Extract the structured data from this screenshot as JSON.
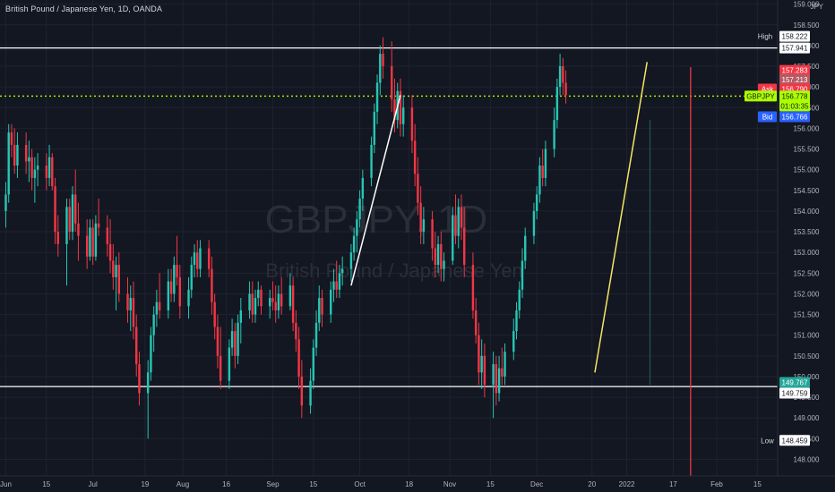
{
  "header": {
    "symbol_line": "British Pound / Japanese Yen, 1D, OANDA",
    "currency": "JPY"
  },
  "watermark": {
    "ticker": "GBPJPY, 1D",
    "name": "British Pound / Japanese Yen"
  },
  "chart_data": {
    "type": "candlestick",
    "instrument": "British Pound / Japanese Yen",
    "timeframe": "1D",
    "source": "OANDA",
    "ylim": [
      147.6,
      159.1
    ],
    "y_ticks": [
      148.0,
      148.5,
      149.0,
      149.5,
      150.0,
      150.5,
      151.0,
      151.5,
      152.0,
      152.5,
      153.0,
      153.5,
      154.0,
      154.5,
      155.0,
      155.5,
      156.0,
      156.5,
      157.0,
      157.5,
      158.0,
      158.5,
      159.0
    ],
    "x_ticks": [
      {
        "label": "Jun",
        "day": 0
      },
      {
        "label": "15",
        "day": 14
      },
      {
        "label": "Jul",
        "day": 30
      },
      {
        "label": "19",
        "day": 48
      },
      {
        "label": "Aug",
        "day": 61
      },
      {
        "label": "16",
        "day": 76
      },
      {
        "label": "Sep",
        "day": 92
      },
      {
        "label": "15",
        "day": 106
      },
      {
        "label": "Oct",
        "day": 122
      },
      {
        "label": "18",
        "day": 139
      },
      {
        "label": "Nov",
        "day": 153
      },
      {
        "label": "15",
        "day": 167
      },
      {
        "label": "Dec",
        "day": 183
      },
      {
        "label": "20",
        "day": 202
      },
      {
        "label": "2022",
        "day": 214
      },
      {
        "label": "17",
        "day": 230
      },
      {
        "label": "Feb",
        "day": 245
      },
      {
        "label": "15",
        "day": 259
      }
    ],
    "price_labels": [
      {
        "tag": "High",
        "value": "158.222",
        "style": "high"
      },
      {
        "tag": "",
        "value": "157.941",
        "style": "line"
      },
      {
        "tag": "",
        "value": "157.283",
        "style": "red"
      },
      {
        "tag": "",
        "value": "157.213",
        "style": "grey"
      },
      {
        "tag": "Ask",
        "value": "156.790",
        "style": "ask"
      },
      {
        "tag": "GBPJPY",
        "value": "156.778",
        "style": "current"
      },
      {
        "tag": "",
        "value": "01:03:35",
        "style": "countdown"
      },
      {
        "tag": "Bid",
        "value": "156.766",
        "style": "bid"
      },
      {
        "tag": "",
        "value": "149.767",
        "style": "teal"
      },
      {
        "tag": "",
        "value": "149.759",
        "style": "line"
      },
      {
        "tag": "Low",
        "value": "148.459",
        "style": "low"
      }
    ],
    "horizontal_lines": [
      157.941,
      149.759
    ],
    "current_price": 156.778,
    "vertical_line_day": 236,
    "trendlines": [
      {
        "from": [
          119,
          152.2
        ],
        "to": [
          136,
          156.8
        ]
      },
      {
        "from": [
          203,
          150.1
        ],
        "to": [
          221,
          157.6
        ]
      }
    ],
    "ohlc_shown": "approximate, read from chart",
    "candles": [
      {
        "d": 0,
        "o": 154.0,
        "h": 154.7,
        "l": 153.6,
        "c": 154.4
      },
      {
        "d": 1,
        "o": 154.4,
        "h": 156.1,
        "l": 154.2,
        "c": 155.9
      },
      {
        "d": 2,
        "o": 155.9,
        "h": 156.1,
        "l": 155.3,
        "c": 155.6
      },
      {
        "d": 3,
        "o": 155.6,
        "h": 156.0,
        "l": 154.9,
        "c": 155.1
      },
      {
        "d": 4,
        "o": 155.1,
        "h": 155.9,
        "l": 154.8,
        "c": 155.6
      },
      {
        "d": 7,
        "o": 155.6,
        "h": 155.9,
        "l": 154.9,
        "c": 155.2
      },
      {
        "d": 8,
        "o": 155.2,
        "h": 155.7,
        "l": 154.7,
        "c": 155.3
      },
      {
        "d": 9,
        "o": 155.3,
        "h": 155.5,
        "l": 154.5,
        "c": 154.8
      },
      {
        "d": 10,
        "o": 154.8,
        "h": 155.3,
        "l": 154.2,
        "c": 155.0
      },
      {
        "d": 11,
        "o": 155.0,
        "h": 155.4,
        "l": 154.6,
        "c": 155.1
      },
      {
        "d": 14,
        "o": 155.1,
        "h": 155.4,
        "l": 154.5,
        "c": 154.8
      },
      {
        "d": 15,
        "o": 154.8,
        "h": 155.6,
        "l": 154.6,
        "c": 155.3
      },
      {
        "d": 16,
        "o": 155.3,
        "h": 155.4,
        "l": 154.5,
        "c": 154.6
      },
      {
        "d": 17,
        "o": 154.6,
        "h": 154.8,
        "l": 153.2,
        "c": 153.5
      },
      {
        "d": 18,
        "o": 153.5,
        "h": 153.9,
        "l": 152.9,
        "c": 153.2
      },
      {
        "d": 21,
        "o": 153.2,
        "h": 154.3,
        "l": 152.2,
        "c": 154.1
      },
      {
        "d": 22,
        "o": 154.1,
        "h": 154.3,
        "l": 153.3,
        "c": 153.5
      },
      {
        "d": 23,
        "o": 153.5,
        "h": 154.6,
        "l": 153.3,
        "c": 154.4
      },
      {
        "d": 24,
        "o": 154.4,
        "h": 155.0,
        "l": 153.5,
        "c": 153.7
      },
      {
        "d": 25,
        "o": 153.7,
        "h": 154.2,
        "l": 152.8,
        "c": 153.4
      },
      {
        "d": 28,
        "o": 153.4,
        "h": 153.8,
        "l": 152.6,
        "c": 152.9
      },
      {
        "d": 29,
        "o": 152.9,
        "h": 153.8,
        "l": 152.8,
        "c": 153.6
      },
      {
        "d": 30,
        "o": 153.6,
        "h": 153.8,
        "l": 152.7,
        "c": 152.9
      },
      {
        "d": 31,
        "o": 152.9,
        "h": 153.9,
        "l": 152.8,
        "c": 153.7
      },
      {
        "d": 32,
        "o": 153.7,
        "h": 154.3,
        "l": 153.4,
        "c": 153.6
      },
      {
        "d": 35,
        "o": 153.6,
        "h": 153.9,
        "l": 152.9,
        "c": 153.2
      },
      {
        "d": 36,
        "o": 153.2,
        "h": 153.8,
        "l": 152.5,
        "c": 152.8
      },
      {
        "d": 37,
        "o": 152.8,
        "h": 153.2,
        "l": 152.1,
        "c": 152.4
      },
      {
        "d": 38,
        "o": 152.4,
        "h": 152.9,
        "l": 151.6,
        "c": 152.7
      },
      {
        "d": 39,
        "o": 152.7,
        "h": 153.0,
        "l": 151.8,
        "c": 152.0
      },
      {
        "d": 42,
        "o": 152.0,
        "h": 152.4,
        "l": 151.3,
        "c": 151.6
      },
      {
        "d": 43,
        "o": 151.6,
        "h": 152.2,
        "l": 151.1,
        "c": 151.9
      },
      {
        "d": 44,
        "o": 151.9,
        "h": 152.3,
        "l": 150.9,
        "c": 151.2
      },
      {
        "d": 45,
        "o": 151.2,
        "h": 151.5,
        "l": 150.0,
        "c": 150.3
      },
      {
        "d": 46,
        "o": 150.3,
        "h": 150.6,
        "l": 149.3,
        "c": 149.6
      },
      {
        "d": 49,
        "o": 149.6,
        "h": 150.4,
        "l": 148.5,
        "c": 150.1
      },
      {
        "d": 50,
        "o": 150.1,
        "h": 151.2,
        "l": 149.9,
        "c": 151.0
      },
      {
        "d": 51,
        "o": 151.0,
        "h": 151.7,
        "l": 150.6,
        "c": 151.5
      },
      {
        "d": 52,
        "o": 151.5,
        "h": 152.1,
        "l": 151.2,
        "c": 151.8
      },
      {
        "d": 53,
        "o": 151.8,
        "h": 152.5,
        "l": 151.4,
        "c": 151.6
      },
      {
        "d": 56,
        "o": 151.6,
        "h": 152.6,
        "l": 151.4,
        "c": 152.3
      },
      {
        "d": 57,
        "o": 152.3,
        "h": 152.6,
        "l": 151.8,
        "c": 152.0
      },
      {
        "d": 58,
        "o": 152.0,
        "h": 152.9,
        "l": 151.8,
        "c": 152.7
      },
      {
        "d": 59,
        "o": 152.7,
        "h": 153.4,
        "l": 152.2,
        "c": 152.4
      },
      {
        "d": 60,
        "o": 152.4,
        "h": 152.7,
        "l": 151.4,
        "c": 151.7
      },
      {
        "d": 63,
        "o": 151.7,
        "h": 152.4,
        "l": 151.4,
        "c": 152.1
      },
      {
        "d": 64,
        "o": 152.1,
        "h": 152.9,
        "l": 151.9,
        "c": 152.7
      },
      {
        "d": 65,
        "o": 152.7,
        "h": 153.2,
        "l": 152.4,
        "c": 153.0
      },
      {
        "d": 66,
        "o": 153.0,
        "h": 153.3,
        "l": 152.4,
        "c": 152.6
      },
      {
        "d": 67,
        "o": 152.6,
        "h": 153.3,
        "l": 152.4,
        "c": 153.1
      },
      {
        "d": 70,
        "o": 153.1,
        "h": 153.3,
        "l": 152.4,
        "c": 152.6
      },
      {
        "d": 71,
        "o": 152.6,
        "h": 152.9,
        "l": 151.5,
        "c": 151.8
      },
      {
        "d": 72,
        "o": 151.8,
        "h": 152.0,
        "l": 150.9,
        "c": 151.2
      },
      {
        "d": 73,
        "o": 151.2,
        "h": 151.5,
        "l": 150.2,
        "c": 150.5
      },
      {
        "d": 74,
        "o": 150.5,
        "h": 151.2,
        "l": 149.7,
        "c": 149.9
      },
      {
        "d": 77,
        "o": 149.9,
        "h": 150.9,
        "l": 149.7,
        "c": 150.7
      },
      {
        "d": 78,
        "o": 150.7,
        "h": 151.4,
        "l": 150.5,
        "c": 151.1
      },
      {
        "d": 79,
        "o": 151.1,
        "h": 151.3,
        "l": 150.2,
        "c": 150.5
      },
      {
        "d": 80,
        "o": 150.5,
        "h": 151.5,
        "l": 150.3,
        "c": 151.3
      },
      {
        "d": 81,
        "o": 151.3,
        "h": 151.9,
        "l": 150.8,
        "c": 151.6
      },
      {
        "d": 84,
        "o": 151.6,
        "h": 152.3,
        "l": 151.4,
        "c": 152.0
      },
      {
        "d": 85,
        "o": 152.0,
        "h": 152.3,
        "l": 151.3,
        "c": 151.5
      },
      {
        "d": 86,
        "o": 151.5,
        "h": 152.1,
        "l": 151.3,
        "c": 151.9
      },
      {
        "d": 87,
        "o": 151.9,
        "h": 152.3,
        "l": 151.7,
        "c": 152.1
      },
      {
        "d": 88,
        "o": 152.1,
        "h": 152.2,
        "l": 151.5,
        "c": 151.7
      },
      {
        "d": 91,
        "o": 151.7,
        "h": 152.1,
        "l": 151.4,
        "c": 151.9
      },
      {
        "d": 92,
        "o": 151.9,
        "h": 152.3,
        "l": 151.6,
        "c": 151.8
      },
      {
        "d": 93,
        "o": 151.8,
        "h": 152.2,
        "l": 151.3,
        "c": 151.6
      },
      {
        "d": 94,
        "o": 151.6,
        "h": 152.2,
        "l": 151.4,
        "c": 152.0
      },
      {
        "d": 95,
        "o": 152.0,
        "h": 152.4,
        "l": 151.5,
        "c": 151.7
      },
      {
        "d": 98,
        "o": 151.7,
        "h": 152.5,
        "l": 151.6,
        "c": 152.2
      },
      {
        "d": 99,
        "o": 152.2,
        "h": 152.4,
        "l": 151.1,
        "c": 151.3
      },
      {
        "d": 100,
        "o": 151.3,
        "h": 151.6,
        "l": 150.6,
        "c": 150.9
      },
      {
        "d": 101,
        "o": 150.9,
        "h": 151.2,
        "l": 149.7,
        "c": 150.0
      },
      {
        "d": 102,
        "o": 150.0,
        "h": 150.4,
        "l": 149.0,
        "c": 149.3
      },
      {
        "d": 105,
        "o": 149.3,
        "h": 150.2,
        "l": 149.1,
        "c": 149.9
      },
      {
        "d": 106,
        "o": 149.9,
        "h": 150.9,
        "l": 149.7,
        "c": 150.7
      },
      {
        "d": 107,
        "o": 150.7,
        "h": 151.6,
        "l": 150.5,
        "c": 151.3
      },
      {
        "d": 108,
        "o": 151.3,
        "h": 152.2,
        "l": 151.1,
        "c": 151.9
      },
      {
        "d": 109,
        "o": 151.9,
        "h": 152.1,
        "l": 151.2,
        "c": 151.5
      },
      {
        "d": 112,
        "o": 151.5,
        "h": 152.3,
        "l": 151.3,
        "c": 152.1
      },
      {
        "d": 113,
        "o": 152.1,
        "h": 152.6,
        "l": 151.8,
        "c": 152.3
      },
      {
        "d": 114,
        "o": 152.3,
        "h": 152.8,
        "l": 151.9,
        "c": 152.1
      },
      {
        "d": 115,
        "o": 152.1,
        "h": 152.7,
        "l": 151.9,
        "c": 152.5
      },
      {
        "d": 116,
        "o": 152.5,
        "h": 152.9,
        "l": 152.2,
        "c": 152.6
      },
      {
        "d": 119,
        "o": 152.6,
        "h": 153.2,
        "l": 152.3,
        "c": 153.0
      },
      {
        "d": 120,
        "o": 153.0,
        "h": 153.6,
        "l": 152.8,
        "c": 153.4
      },
      {
        "d": 121,
        "o": 153.4,
        "h": 154.0,
        "l": 153.0,
        "c": 153.8
      },
      {
        "d": 122,
        "o": 153.8,
        "h": 154.5,
        "l": 153.6,
        "c": 154.3
      },
      {
        "d": 123,
        "o": 154.3,
        "h": 155.0,
        "l": 154.0,
        "c": 154.8
      },
      {
        "d": 126,
        "o": 154.8,
        "h": 155.8,
        "l": 154.6,
        "c": 155.6
      },
      {
        "d": 127,
        "o": 155.6,
        "h": 156.6,
        "l": 155.4,
        "c": 156.4
      },
      {
        "d": 128,
        "o": 156.4,
        "h": 157.3,
        "l": 156.1,
        "c": 157.1
      },
      {
        "d": 129,
        "o": 157.1,
        "h": 158.0,
        "l": 156.8,
        "c": 157.8
      },
      {
        "d": 130,
        "o": 157.8,
        "h": 158.2,
        "l": 157.2,
        "c": 157.5
      },
      {
        "d": 133,
        "o": 157.5,
        "h": 158.1,
        "l": 156.4,
        "c": 156.7
      },
      {
        "d": 134,
        "o": 156.7,
        "h": 157.2,
        "l": 155.9,
        "c": 156.2
      },
      {
        "d": 135,
        "o": 156.2,
        "h": 157.1,
        "l": 156.0,
        "c": 156.9
      },
      {
        "d": 136,
        "o": 156.9,
        "h": 157.2,
        "l": 155.8,
        "c": 156.1
      },
      {
        "d": 137,
        "o": 156.1,
        "h": 156.8,
        "l": 155.8,
        "c": 156.5
      },
      {
        "d": 140,
        "o": 156.5,
        "h": 156.8,
        "l": 155.4,
        "c": 155.7
      },
      {
        "d": 141,
        "o": 155.7,
        "h": 156.1,
        "l": 154.6,
        "c": 154.9
      },
      {
        "d": 142,
        "o": 154.9,
        "h": 155.3,
        "l": 153.9,
        "c": 154.2
      },
      {
        "d": 143,
        "o": 154.2,
        "h": 154.6,
        "l": 153.2,
        "c": 153.5
      },
      {
        "d": 144,
        "o": 153.5,
        "h": 154.1,
        "l": 153.2,
        "c": 153.8
      },
      {
        "d": 147,
        "o": 153.8,
        "h": 154.0,
        "l": 152.8,
        "c": 153.1
      },
      {
        "d": 148,
        "o": 153.1,
        "h": 153.5,
        "l": 152.4,
        "c": 152.7
      },
      {
        "d": 149,
        "o": 152.7,
        "h": 153.4,
        "l": 152.5,
        "c": 153.2
      },
      {
        "d": 150,
        "o": 153.2,
        "h": 153.5,
        "l": 152.3,
        "c": 152.6
      },
      {
        "d": 151,
        "o": 152.6,
        "h": 153.0,
        "l": 152.3,
        "c": 152.8
      },
      {
        "d": 154,
        "o": 152.8,
        "h": 154.1,
        "l": 152.7,
        "c": 153.9
      },
      {
        "d": 155,
        "o": 153.9,
        "h": 154.4,
        "l": 153.2,
        "c": 153.4
      },
      {
        "d": 156,
        "o": 153.4,
        "h": 154.3,
        "l": 153.1,
        "c": 154.1
      },
      {
        "d": 157,
        "o": 154.1,
        "h": 154.4,
        "l": 153.3,
        "c": 153.6
      },
      {
        "d": 158,
        "o": 153.6,
        "h": 154.1,
        "l": 152.4,
        "c": 152.7
      },
      {
        "d": 161,
        "o": 152.7,
        "h": 153.0,
        "l": 151.4,
        "c": 151.6
      },
      {
        "d": 162,
        "o": 151.6,
        "h": 151.9,
        "l": 150.8,
        "c": 151.0
      },
      {
        "d": 163,
        "o": 151.0,
        "h": 151.3,
        "l": 149.8,
        "c": 150.1
      },
      {
        "d": 164,
        "o": 150.1,
        "h": 150.9,
        "l": 149.7,
        "c": 150.5
      },
      {
        "d": 165,
        "o": 150.5,
        "h": 150.8,
        "l": 149.5,
        "c": 149.8
      },
      {
        "d": 168,
        "o": 149.8,
        "h": 150.6,
        "l": 149.0,
        "c": 150.3
      },
      {
        "d": 169,
        "o": 150.3,
        "h": 150.5,
        "l": 149.3,
        "c": 149.6
      },
      {
        "d": 170,
        "o": 149.6,
        "h": 150.5,
        "l": 149.4,
        "c": 150.2
      },
      {
        "d": 171,
        "o": 150.2,
        "h": 150.7,
        "l": 149.8,
        "c": 150.0
      },
      {
        "d": 172,
        "o": 150.0,
        "h": 150.8,
        "l": 149.8,
        "c": 150.6
      },
      {
        "d": 175,
        "o": 150.6,
        "h": 151.4,
        "l": 150.4,
        "c": 151.1
      },
      {
        "d": 176,
        "o": 151.1,
        "h": 151.8,
        "l": 150.9,
        "c": 151.6
      },
      {
        "d": 177,
        "o": 151.6,
        "h": 152.3,
        "l": 151.4,
        "c": 152.1
      },
      {
        "d": 178,
        "o": 152.1,
        "h": 153.1,
        "l": 151.9,
        "c": 152.8
      },
      {
        "d": 179,
        "o": 152.8,
        "h": 153.6,
        "l": 152.6,
        "c": 153.4
      },
      {
        "d": 182,
        "o": 153.4,
        "h": 154.2,
        "l": 153.2,
        "c": 154.0
      },
      {
        "d": 183,
        "o": 154.0,
        "h": 154.6,
        "l": 153.8,
        "c": 154.4
      },
      {
        "d": 184,
        "o": 154.4,
        "h": 155.3,
        "l": 154.2,
        "c": 155.1
      },
      {
        "d": 185,
        "o": 155.1,
        "h": 155.5,
        "l": 154.6,
        "c": 154.8
      },
      {
        "d": 186,
        "o": 154.8,
        "h": 155.7,
        "l": 154.6,
        "c": 155.5
      },
      {
        "d": 189,
        "o": 155.5,
        "h": 156.5,
        "l": 155.3,
        "c": 156.2
      },
      {
        "d": 190,
        "o": 156.2,
        "h": 157.2,
        "l": 156.0,
        "c": 157.0
      },
      {
        "d": 191,
        "o": 157.0,
        "h": 157.8,
        "l": 156.8,
        "c": 157.5
      },
      {
        "d": 192,
        "o": 157.5,
        "h": 157.7,
        "l": 156.8,
        "c": 157.1
      },
      {
        "d": 193,
        "o": 157.1,
        "h": 157.4,
        "l": 156.6,
        "c": 156.8
      }
    ]
  }
}
